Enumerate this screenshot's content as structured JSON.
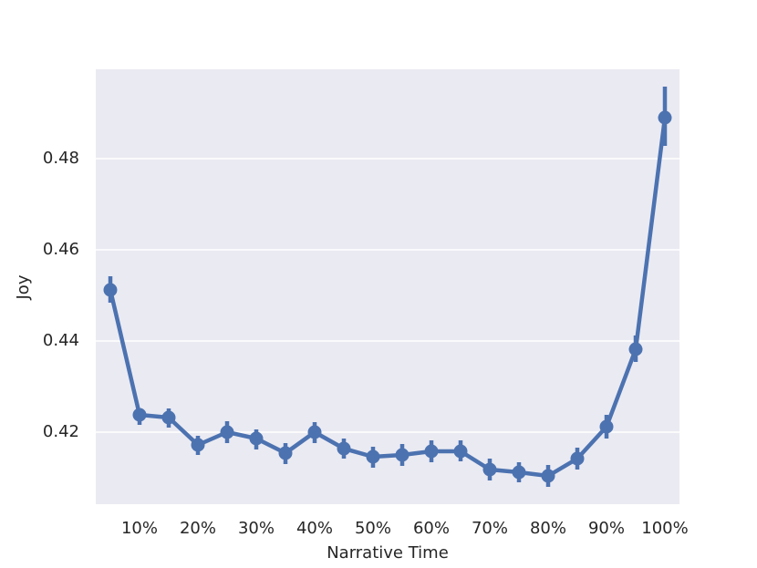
{
  "chart_data": {
    "type": "pointplot",
    "x_label": "Narrative Time",
    "y_label": "Joy",
    "categories": [
      null,
      "10%",
      null,
      "20%",
      null,
      "30%",
      null,
      "40%",
      null,
      "50%",
      null,
      "60%",
      null,
      "70%",
      null,
      "80%",
      null,
      "90%",
      null,
      "100%"
    ],
    "values": [
      0.4512,
      0.4238,
      0.4232,
      0.4172,
      0.42,
      0.4186,
      0.4154,
      0.42,
      0.4164,
      0.4146,
      0.415,
      0.4158,
      0.4158,
      0.4118,
      0.4112,
      0.4104,
      0.4142,
      0.4212,
      0.4382,
      0.489
    ],
    "ci_low": [
      0.4484,
      0.4216,
      0.421,
      0.415,
      0.4176,
      0.4162,
      0.413,
      0.4176,
      0.4142,
      0.4122,
      0.4126,
      0.4134,
      0.4136,
      0.4094,
      0.409,
      0.408,
      0.4118,
      0.4186,
      0.4354,
      0.4828
    ],
    "ci_high": [
      0.4542,
      0.425,
      0.4252,
      0.4192,
      0.4224,
      0.4206,
      0.4176,
      0.4222,
      0.4186,
      0.4168,
      0.4174,
      0.4182,
      0.4182,
      0.4142,
      0.4134,
      0.4128,
      0.4166,
      0.4238,
      0.4412,
      0.4958
    ],
    "color": "#4c72b0",
    "ylim": [
      0.4042,
      0.4996
    ],
    "yticks": [
      0.42,
      0.44,
      0.46,
      0.48
    ],
    "grid": true
  }
}
